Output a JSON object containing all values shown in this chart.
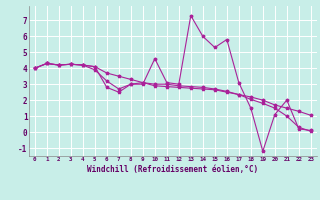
{
  "background_color": "#c8eee8",
  "line_color": "#aa2299",
  "marker": "*",
  "xlabel": "Windchill (Refroidissement éolien,°C)",
  "xlim": [
    -0.5,
    23.5
  ],
  "ylim": [
    -1.5,
    7.9
  ],
  "yticks": [
    -1,
    0,
    1,
    2,
    3,
    4,
    5,
    6,
    7
  ],
  "xticks": [
    0,
    1,
    2,
    3,
    4,
    5,
    6,
    7,
    8,
    9,
    10,
    11,
    12,
    13,
    14,
    15,
    16,
    17,
    18,
    19,
    20,
    21,
    22,
    23
  ],
  "series1": [
    4.0,
    4.3,
    4.2,
    4.25,
    4.2,
    4.1,
    2.8,
    2.5,
    3.0,
    3.0,
    4.6,
    3.1,
    3.0,
    7.3,
    6.0,
    5.3,
    5.8,
    3.1,
    1.5,
    -1.2,
    1.1,
    2.0,
    0.2,
    0.1
  ],
  "series2": [
    4.0,
    4.3,
    4.2,
    4.25,
    4.2,
    4.1,
    3.7,
    3.5,
    3.3,
    3.1,
    2.9,
    2.85,
    2.8,
    2.75,
    2.7,
    2.65,
    2.5,
    2.35,
    2.2,
    2.0,
    1.7,
    1.5,
    1.3,
    1.05
  ],
  "series3": [
    4.0,
    4.3,
    4.2,
    4.25,
    4.2,
    3.9,
    3.2,
    2.7,
    3.0,
    3.1,
    3.0,
    3.0,
    2.9,
    2.85,
    2.8,
    2.7,
    2.55,
    2.35,
    2.05,
    1.8,
    1.5,
    1.0,
    0.3,
    0.05
  ]
}
